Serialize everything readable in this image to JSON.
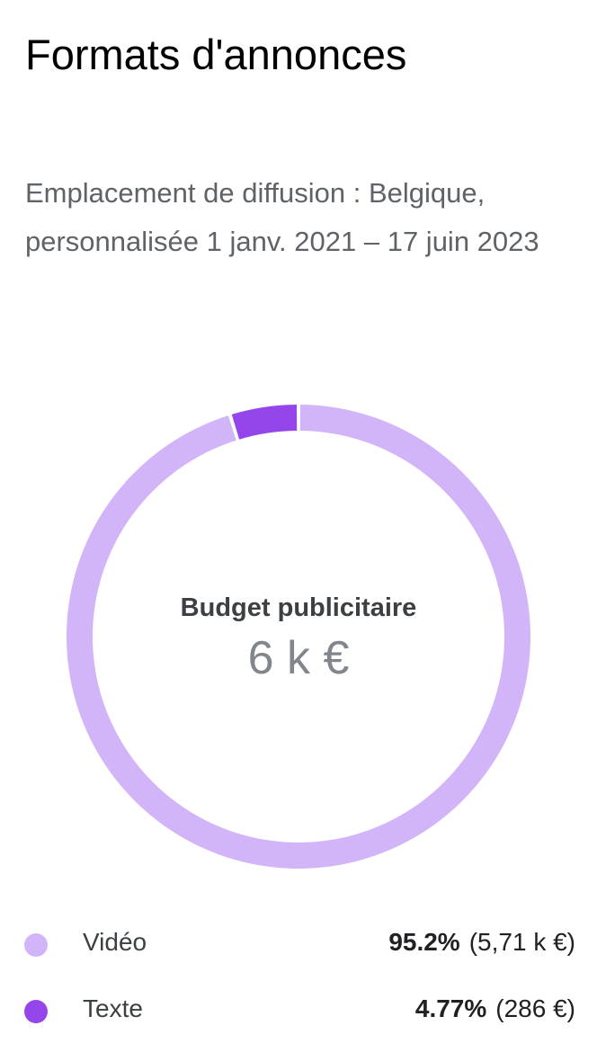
{
  "header": {
    "title": "Formats d'annonces",
    "subtitle": "Emplacement de diffusion : Belgique, personnalisée 1 janv. 2021 – 17 juin 2023"
  },
  "center": {
    "label": "Budget publicitaire",
    "value": "6 k €"
  },
  "chart_data": {
    "type": "pie",
    "donut": true,
    "categories": [
      "Vidéo",
      "Texte"
    ],
    "values": [
      95.2,
      4.77
    ],
    "colors": [
      "#d2b4f8",
      "#9446ea"
    ],
    "legend": "bottom"
  },
  "legend": [
    {
      "name": "Vidéo",
      "percent": "95.2%",
      "amount": "(5,71 k €)",
      "color": "#d2b4f8"
    },
    {
      "name": "Texte",
      "percent": "4.77%",
      "amount": "(286 €)",
      "color": "#9446ea"
    }
  ]
}
